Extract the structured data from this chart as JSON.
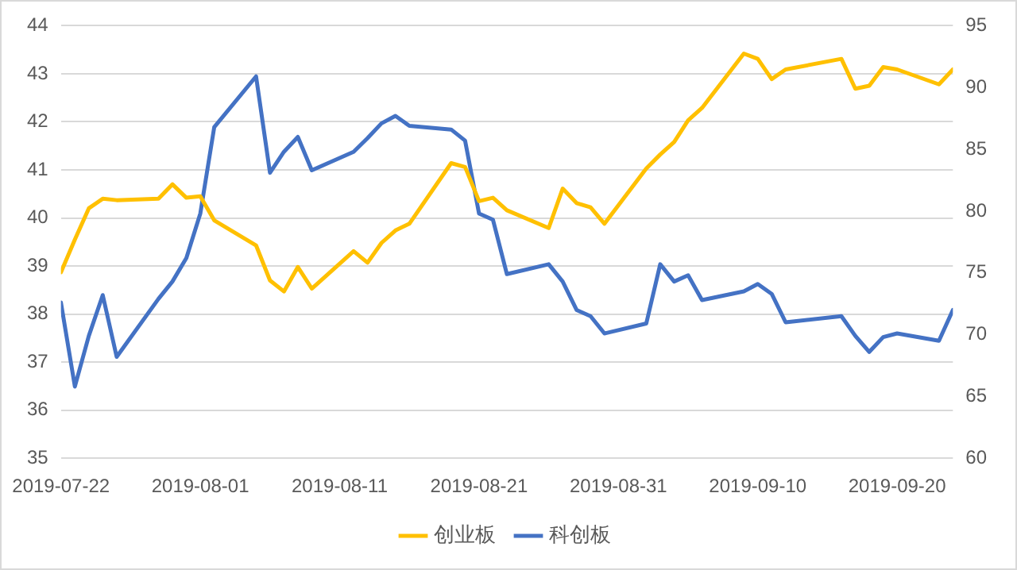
{
  "chart_data": {
    "type": "line",
    "x": [
      "2019-07-22",
      "2019-07-23",
      "2019-07-24",
      "2019-07-25",
      "2019-07-26",
      "2019-07-29",
      "2019-07-30",
      "2019-07-31",
      "2019-08-01",
      "2019-08-02",
      "2019-08-05",
      "2019-08-06",
      "2019-08-07",
      "2019-08-08",
      "2019-08-09",
      "2019-08-12",
      "2019-08-13",
      "2019-08-14",
      "2019-08-15",
      "2019-08-16",
      "2019-08-19",
      "2019-08-20",
      "2019-08-21",
      "2019-08-22",
      "2019-08-23",
      "2019-08-26",
      "2019-08-27",
      "2019-08-28",
      "2019-08-29",
      "2019-08-30",
      "2019-09-02",
      "2019-09-03",
      "2019-09-04",
      "2019-09-05",
      "2019-09-06",
      "2019-09-09",
      "2019-09-10",
      "2019-09-11",
      "2019-09-12",
      "2019-09-16",
      "2019-09-17",
      "2019-09-18",
      "2019-09-19",
      "2019-09-20",
      "2019-09-23",
      "2019-09-24"
    ],
    "series": [
      {
        "name": "创业板",
        "color": "#ffc000",
        "values": [
          38.87,
          39.55,
          40.2,
          40.4,
          40.37,
          40.4,
          40.7,
          40.42,
          40.45,
          39.95,
          39.43,
          38.7,
          38.47,
          38.98,
          38.53,
          39.31,
          39.07,
          39.48,
          39.74,
          39.88,
          41.14,
          41.06,
          40.35,
          40.42,
          40.16,
          39.79,
          40.61,
          40.31,
          40.22,
          39.88,
          41.03,
          41.32,
          41.58,
          42.03,
          42.29,
          43.42,
          43.31,
          42.89,
          43.09,
          43.31,
          42.69,
          42.75,
          43.14,
          43.09,
          42.78,
          43.09
        ]
      },
      {
        "name": "科创板",
        "color": "#4472c4",
        "axis": "y2",
        "values": [
          72.6,
          65.8,
          69.9,
          73.2,
          68.2,
          72.9,
          74.3,
          76.2,
          79.8,
          86.8,
          90.9,
          83.1,
          84.8,
          86.0,
          83.3,
          84.8,
          85.9,
          87.1,
          87.7,
          86.9,
          86.6,
          85.7,
          79.8,
          79.3,
          74.9,
          75.7,
          74.3,
          72.0,
          71.5,
          70.1,
          70.9,
          75.7,
          74.3,
          74.8,
          72.8,
          73.5,
          74.1,
          73.3,
          71.0,
          71.5,
          69.9,
          68.6,
          69.8,
          70.1,
          69.5,
          72.0
        ]
      }
    ],
    "xlim": [
      "2019-07-22",
      "2019-09-24"
    ],
    "xticks": [
      "2019-07-22",
      "2019-08-01",
      "2019-08-11",
      "2019-08-21",
      "2019-08-31",
      "2019-09-10",
      "2019-09-20"
    ],
    "ylim": [
      35,
      44
    ],
    "yticks": [
      35,
      36,
      37,
      38,
      39,
      40,
      41,
      42,
      43,
      44
    ],
    "y2lim": [
      60,
      95
    ],
    "y2ticks": [
      60,
      65,
      70,
      75,
      80,
      85,
      90,
      95
    ],
    "grid": "y",
    "legend": "bottom",
    "marker": "none",
    "line_style": "solid"
  }
}
